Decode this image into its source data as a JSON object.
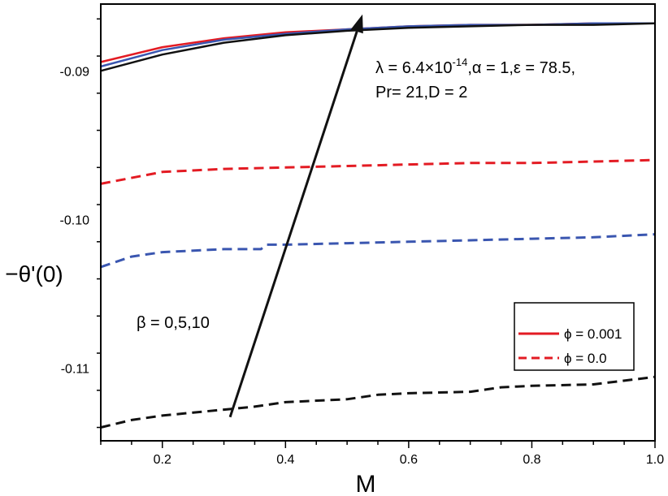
{
  "chart_data": {
    "type": "line",
    "title": "",
    "xlabel": "M",
    "ylabel": "−θ'(0)",
    "xlim": [
      0.1,
      1.0
    ],
    "ylim": [
      -0.1149,
      -0.0855
    ],
    "x_ticks": [
      0.2,
      0.4,
      0.6,
      0.8,
      1.0
    ],
    "x_tick_labels": [
      "0.2",
      "0.4",
      "0.6",
      "0.8",
      "1.0"
    ],
    "y_ticks": [
      -0.09,
      -0.1,
      -0.11
    ],
    "y_tick_labels": [
      "-0.09",
      "-0.10",
      "-0.11"
    ],
    "grid": false,
    "legend": {
      "position": "lower-right",
      "entries": [
        {
          "label": "ϕ = 0.001",
          "style": "solid",
          "color": "#e31b23"
        },
        {
          "label": "ϕ = 0.0",
          "style": "dashed",
          "color": "#e31b23"
        }
      ]
    },
    "annotations": {
      "params_line1_prefix": "λ = 6.4×10",
      "params_line1_exp": "-14",
      "params_line1_suffix": ",α = 1,ε = 78.5,",
      "params_line2": "Pr= 21,D = 2",
      "beta": "β = 0,5,10"
    },
    "arrow": {
      "from": [
        0.31,
        -0.1133
      ],
      "to": [
        0.525,
        -0.0862
      ]
    },
    "series": [
      {
        "name": "β=0, ϕ=0.001",
        "color": "#e31b23",
        "style": "solid",
        "x": [
          0.1,
          0.2,
          0.3,
          0.4,
          0.5,
          0.6,
          0.7,
          0.8,
          0.9,
          1.0
        ],
        "y": [
          -0.0894,
          -0.0884,
          -0.0878,
          -0.0874,
          -0.0872,
          -0.087,
          -0.0869,
          -0.0869,
          -0.0868,
          -0.0868
        ]
      },
      {
        "name": "β=5, ϕ=0.001",
        "color": "#3a56b0",
        "style": "solid",
        "x": [
          0.1,
          0.2,
          0.3,
          0.4,
          0.5,
          0.6,
          0.7,
          0.8,
          0.9,
          1.0
        ],
        "y": [
          -0.0897,
          -0.0886,
          -0.0879,
          -0.0875,
          -0.0872,
          -0.087,
          -0.0869,
          -0.0869,
          -0.0868,
          -0.0868
        ]
      },
      {
        "name": "β=10, ϕ=0.001",
        "color": "#111111",
        "style": "solid",
        "x": [
          0.1,
          0.2,
          0.3,
          0.4,
          0.5,
          0.6,
          0.7,
          0.8,
          0.9,
          1.0
        ],
        "y": [
          -0.09,
          -0.0889,
          -0.0881,
          -0.0876,
          -0.0873,
          -0.0871,
          -0.087,
          -0.0869,
          -0.0869,
          -0.0868
        ]
      },
      {
        "name": "β=0, ϕ=0.0",
        "color": "#e31b23",
        "style": "dashed",
        "x": [
          0.1,
          0.2,
          0.3,
          0.4,
          0.5,
          0.6,
          0.7,
          0.8,
          0.9,
          1.0
        ],
        "y": [
          -0.0976,
          -0.0968,
          -0.0966,
          -0.0965,
          -0.0964,
          -0.0963,
          -0.0962,
          -0.0962,
          -0.0961,
          -0.096
        ]
      },
      {
        "name": "β=5, ϕ=0.0",
        "color": "#3a56b0",
        "style": "dashed",
        "x": [
          0.1,
          0.15,
          0.2,
          0.3,
          0.36,
          0.37,
          0.4,
          0.5,
          0.6,
          0.7,
          0.8,
          0.9,
          1.0
        ],
        "y": [
          -0.1032,
          -0.1025,
          -0.1022,
          -0.102,
          -0.102,
          -0.1017,
          -0.1017,
          -0.1016,
          -0.1015,
          -0.1014,
          -0.1013,
          -0.1012,
          -0.101
        ]
      },
      {
        "name": "β=10, ϕ=0.0",
        "color": "#111111",
        "style": "dashed",
        "x": [
          0.1,
          0.15,
          0.2,
          0.3,
          0.35,
          0.4,
          0.5,
          0.55,
          0.6,
          0.7,
          0.75,
          0.8,
          0.9,
          1.0
        ],
        "y": [
          -0.114,
          -0.1135,
          -0.1132,
          -0.1128,
          -0.1126,
          -0.1123,
          -0.1121,
          -0.1118,
          -0.1117,
          -0.1116,
          -0.1113,
          -0.1112,
          -0.1111,
          -0.1106
        ]
      }
    ]
  }
}
